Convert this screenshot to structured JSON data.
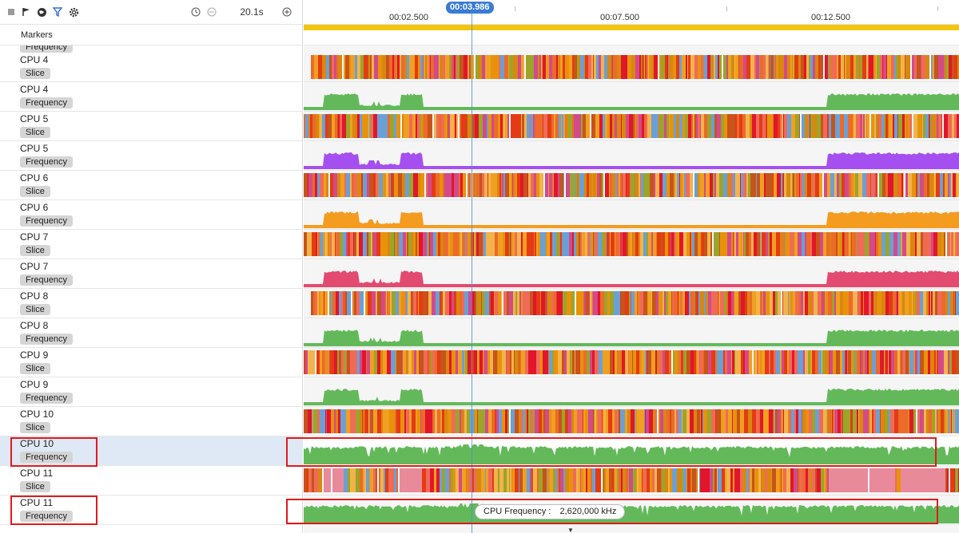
{
  "toolbar": {
    "zoom_value": "20.1s",
    "icons": [
      "stop-icon",
      "flag-icon",
      "globe-icon",
      "filter-icon",
      "gear-icon",
      "clock-icon",
      "zoom-out-icon",
      "zoom-in-icon"
    ]
  },
  "ruler": {
    "ticks": [
      "00:02.500",
      "00:07.500",
      "00:12.500"
    ],
    "cursor_time": "00:03.986"
  },
  "markers": {
    "label": "Markers"
  },
  "partial_top_badge": "Frequency",
  "tracks": [
    {
      "name": "CPU 4",
      "type": "Slice"
    },
    {
      "name": "CPU 4",
      "type": "Frequency",
      "color": "#63b95a"
    },
    {
      "name": "CPU 5",
      "type": "Slice"
    },
    {
      "name": "CPU 5",
      "type": "Frequency",
      "color": "#a54ff0"
    },
    {
      "name": "CPU 6",
      "type": "Slice"
    },
    {
      "name": "CPU 6",
      "type": "Frequency",
      "color": "#f39c1f"
    },
    {
      "name": "CPU 7",
      "type": "Slice"
    },
    {
      "name": "CPU 7",
      "type": "Frequency",
      "color": "#e34a6f"
    },
    {
      "name": "CPU 8",
      "type": "Slice"
    },
    {
      "name": "CPU 8",
      "type": "Frequency",
      "color": "#63b95a"
    },
    {
      "name": "CPU 9",
      "type": "Slice"
    },
    {
      "name": "CPU 9",
      "type": "Frequency",
      "color": "#63b95a"
    },
    {
      "name": "CPU 10",
      "type": "Slice"
    },
    {
      "name": "CPU 10",
      "type": "Frequency",
      "color": "#63b95a",
      "selected": true
    },
    {
      "name": "CPU 11",
      "type": "Slice"
    },
    {
      "name": "CPU 11",
      "type": "Frequency",
      "color": "#63b95a"
    }
  ],
  "tooltip": {
    "label": "CPU Frequency :",
    "value": "2,620,000 kHz"
  },
  "colors": {
    "accent": "#3a7bd5",
    "highlight_box": "#e01b1b",
    "marker_bar": "#f2c60f",
    "slice_palette": [
      "#e8920c",
      "#e43b14",
      "#f0a020",
      "#d9870e",
      "#c7541a",
      "#ec6a2a",
      "#9aa52a",
      "#e2162a",
      "#6aa0d6",
      "#f2b34a",
      "#d24a8c",
      "#f06a5a"
    ]
  }
}
